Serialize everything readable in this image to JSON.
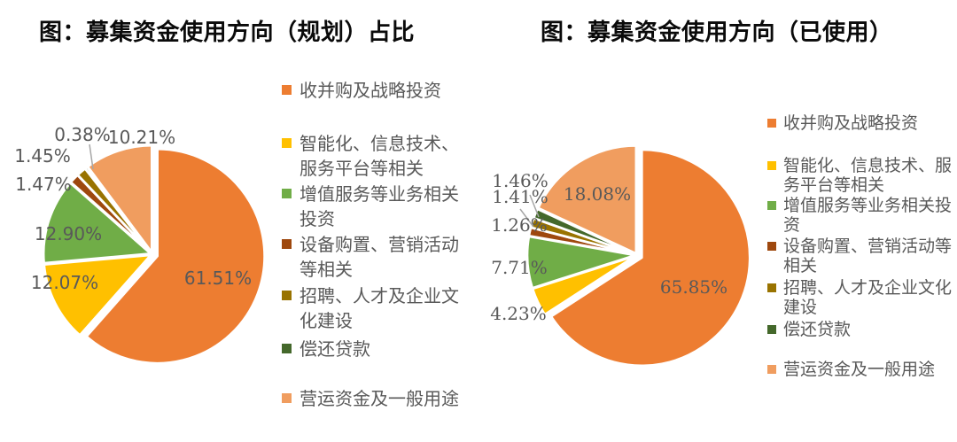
{
  "page": {
    "background": "#ffffff",
    "label_color": "#595959",
    "title_color": "#0a0a0a",
    "leader_line_color": "#a6a6a6"
  },
  "chart_data": [
    {
      "type": "pie",
      "title": "图：募集资金使用方向（规划）占比",
      "categories": [
        "收并购及战略投资",
        "智能化、信息技术、服务平台等相关",
        "增值服务等业务相关投资",
        "设备购置、营销活动等相关",
        "招聘、人才及企业文化建设",
        "偿还贷款",
        "营运资金及一般用途"
      ],
      "values": [
        61.51,
        12.07,
        12.9,
        1.47,
        1.45,
        0.38,
        10.21
      ],
      "labels": [
        "61.51%",
        "12.07%",
        "12.90%",
        "1.47%",
        "1.45%",
        "0.38%",
        "10.21%"
      ],
      "colors": [
        "#ED7D31",
        "#FFC000",
        "#70AD47",
        "#9E480E",
        "#997300",
        "#44682B",
        "#F09D5F"
      ],
      "legend_position": "right",
      "start_angle_deg": 0,
      "direction": "clockwise",
      "exploded_slice": "收并购及战略投资"
    },
    {
      "type": "pie",
      "title": "图：募集资金使用方向（已使用）",
      "categories": [
        "收并购及战略投资",
        "智能化、信息技术、服务平台等相关",
        "增值服务等业务相关投资",
        "设备购置、营销活动等相关",
        "招聘、人才及企业文化建设",
        "偿还贷款",
        "营运资金及一般用途"
      ],
      "values": [
        65.85,
        4.23,
        7.71,
        1.26,
        1.41,
        1.46,
        18.08
      ],
      "labels": [
        "65.85%",
        "4.23%",
        "7.71%",
        "1.26%",
        "1.41%",
        "1.46%",
        "18.08%"
      ],
      "colors": [
        "#ED7D31",
        "#FFC000",
        "#70AD47",
        "#9E480E",
        "#997300",
        "#44682B",
        "#F09D5F"
      ],
      "legend_position": "right",
      "start_angle_deg": 0,
      "direction": "clockwise",
      "exploded_slice": "收并购及战略投资"
    }
  ]
}
